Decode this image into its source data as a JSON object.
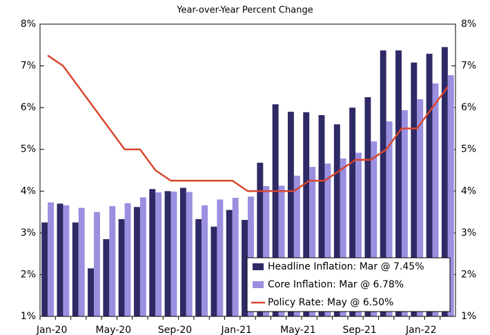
{
  "chart_data": {
    "type": "bar-line",
    "subtitle": "Year-over-Year Percent Change",
    "categories": [
      "Jan-20",
      null,
      null,
      null,
      "May-20",
      null,
      null,
      null,
      "Sep-20",
      null,
      null,
      null,
      "Jan-21",
      null,
      null,
      null,
      "May-21",
      null,
      null,
      null,
      "Sep-21",
      null,
      null,
      null,
      "Jan-22",
      null,
      null
    ],
    "series": [
      {
        "name": "Headline Inflation: Mar @ 7.45%",
        "type": "bar",
        "color": "#2e2a66",
        "values": [
          3.25,
          3.7,
          3.25,
          2.15,
          2.85,
          3.33,
          3.62,
          4.05,
          4.0,
          4.08,
          3.33,
          3.15,
          3.55,
          3.31,
          4.68,
          6.08,
          5.9,
          5.89,
          5.82,
          5.6,
          6.0,
          6.25,
          7.37,
          7.37,
          7.08,
          7.29,
          7.45
        ]
      },
      {
        "name": "Core Inflation: Mar @ 6.78%",
        "type": "bar",
        "color": "#9b8fe0",
        "values": [
          3.73,
          3.66,
          3.6,
          3.5,
          3.64,
          3.71,
          3.85,
          3.97,
          3.99,
          3.98,
          3.66,
          3.8,
          3.84,
          3.87,
          4.12,
          4.13,
          4.37,
          4.58,
          4.66,
          4.78,
          4.92,
          5.19,
          5.67,
          5.94,
          6.2,
          6.58,
          6.78
        ]
      },
      {
        "name": "Policy Rate: May @ 6.50%",
        "type": "line",
        "color": "#d9452b",
        "values": [
          7.25,
          7.0,
          6.5,
          6.0,
          5.5,
          5.0,
          5.0,
          4.5,
          4.25,
          4.25,
          4.25,
          4.25,
          4.25,
          4.0,
          4.0,
          4.0,
          4.0,
          4.25,
          4.25,
          4.5,
          4.75,
          4.75,
          5.0,
          5.5,
          5.5,
          6.0,
          6.5
        ]
      }
    ],
    "ylim": [
      1,
      8
    ],
    "yticks": [
      {
        "value": 1,
        "label": "1%"
      },
      {
        "value": 2,
        "label": "2%"
      },
      {
        "value": 3,
        "label": "3%"
      },
      {
        "value": 4,
        "label": "4%"
      },
      {
        "value": 5,
        "label": "5%"
      },
      {
        "value": 6,
        "label": "6%"
      },
      {
        "value": 7,
        "label": "7%"
      },
      {
        "value": 8,
        "label": "8%"
      }
    ],
    "y2lim": [
      1,
      8
    ],
    "y2ticks": [
      {
        "value": 1,
        "label": "1%"
      },
      {
        "value": 2,
        "label": "2%"
      },
      {
        "value": 3,
        "label": "3%"
      },
      {
        "value": 4,
        "label": "4%"
      },
      {
        "value": 5,
        "label": "5%"
      },
      {
        "value": 6,
        "label": "6%"
      },
      {
        "value": 7,
        "label": "7%"
      },
      {
        "value": 8,
        "label": "8%"
      }
    ],
    "legend": "lower-right"
  }
}
